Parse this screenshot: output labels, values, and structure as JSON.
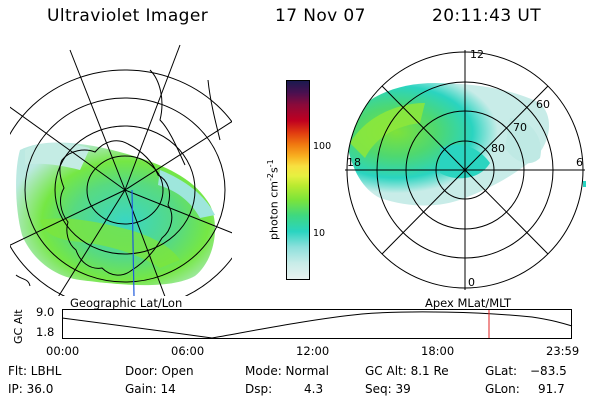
{
  "header": {
    "instrument": "Ultraviolet Imager",
    "date": "17 Nov 07",
    "time": "20:11:43 UT"
  },
  "left_panel": {
    "label": "Geographic Lat/Lon"
  },
  "right_panel": {
    "label": "Apex MLat/MLT",
    "mlt_labels": {
      "top": "12",
      "left": "18",
      "right": "6",
      "bottom": "0"
    },
    "lat_labels": [
      "60",
      "70",
      "80"
    ]
  },
  "colorbar": {
    "unit_main": "photon cm",
    "unit_exp1": "-2",
    "unit_mid": "s",
    "unit_exp2": "-1",
    "ticks": [
      "100",
      "10"
    ]
  },
  "timeline": {
    "axis_label": "GC Alt",
    "y_top": "9.0",
    "y_bottom": "1.8",
    "x_ticks": [
      "00:00",
      "06:00",
      "12:00",
      "18:00",
      "23:59"
    ],
    "marker_color": "#e02020"
  },
  "info": {
    "flt": "Flt: LBHL",
    "ip": "IP: 36.0",
    "door": "Door: Open",
    "gain": "Gain: 14",
    "mode": "Mode: Normal",
    "dsp_label": "Dsp:",
    "dsp_value": "4.3",
    "gcalt": "GC Alt: 8.1 Re",
    "seq": "Seq: 39",
    "glat_label": "GLat:",
    "glat_value": "−83.5",
    "glon_label": "GLon:",
    "glon_value": "91.7"
  }
}
